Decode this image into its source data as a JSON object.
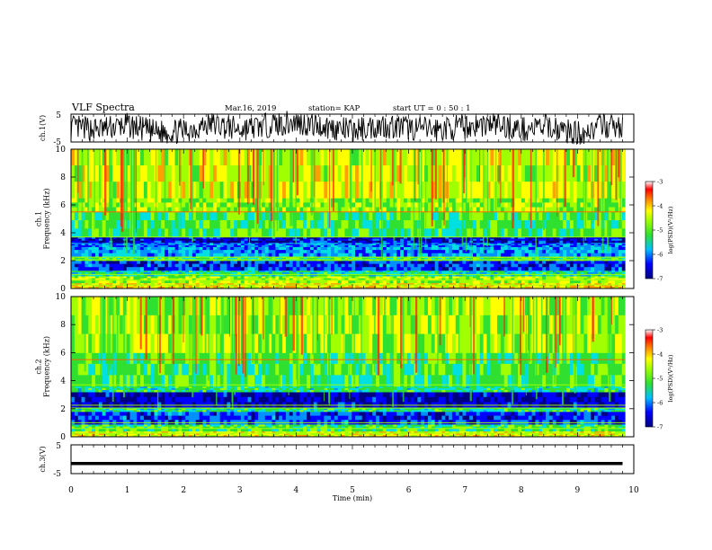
{
  "header": {
    "title": "VLF Spectra",
    "date": "Mar.16, 2019",
    "station": "station= KAP",
    "start": "start  UT =   0 : 50 : 1"
  },
  "colors": {
    "palette": [
      "#000080",
      "#0000ff",
      "#0090ff",
      "#00e0e0",
      "#30e030",
      "#a0ff00",
      "#ffff00",
      "#ffa000",
      "#ff2000",
      "#ff80ff"
    ],
    "trace": "#000000",
    "axes": "#000000"
  },
  "chart_data": [
    {
      "type": "line",
      "name": "ch1-waveform",
      "ylabel": "ch.1(V)",
      "ylim": [
        -5,
        5
      ],
      "yticks": [
        "5",
        "-5"
      ],
      "x": [
        0,
        0.5,
        1,
        1.5,
        2,
        2.5,
        3,
        3.5,
        4,
        4.5,
        5,
        5.5,
        6,
        6.5,
        7,
        7.5,
        8,
        8.5,
        9,
        9.5,
        9.8
      ],
      "y": [
        0.2,
        -0.5,
        1.0,
        -1.5,
        -1.0,
        1.5,
        -0.5,
        1.0,
        2.0,
        0.5,
        -1.0,
        1.0,
        0.0,
        -0.5,
        0.5,
        1.5,
        -0.5,
        0.5,
        -2.0,
        1.0,
        0.0
      ]
    },
    {
      "type": "heatmap",
      "name": "ch1-spectrogram",
      "ylabel": "ch.1\nFrequency (kHz)",
      "ylim": [
        0,
        10
      ],
      "yticks": [
        "0",
        "2",
        "4",
        "6",
        "8",
        "10"
      ],
      "colorbar": {
        "label": "log(PSD)(V²/Hz)",
        "range": [
          -7,
          -3
        ],
        "ticks": [
          "-3",
          "-4",
          "-5",
          "-6",
          "-7"
        ]
      },
      "bands": [
        {
          "f": [
            0,
            0.4
          ],
          "level": -4.0
        },
        {
          "f": [
            0.4,
            0.9
          ],
          "level": -4.5
        },
        {
          "f": [
            0.9,
            1.3
          ],
          "level": -5.3
        },
        {
          "f": [
            1.3,
            2.0
          ],
          "level": -6.2
        },
        {
          "f": [
            2.0,
            2.3
          ],
          "level": -5.0
        },
        {
          "f": [
            2.3,
            3.0
          ],
          "level": -5.8
        },
        {
          "f": [
            3.0,
            3.3
          ],
          "level": -6.0
        },
        {
          "f": [
            3.3,
            3.7
          ],
          "level": -6.5
        },
        {
          "f": [
            3.7,
            5.5
          ],
          "level": -5.0
        },
        {
          "f": [
            5.5,
            6.5
          ],
          "level": -4.6
        },
        {
          "f": [
            6.5,
            10
          ],
          "level": -4.3
        }
      ]
    },
    {
      "type": "heatmap",
      "name": "ch2-spectrogram",
      "ylabel": "ch.2\nFrequency (kHz)",
      "ylim": [
        0,
        10
      ],
      "yticks": [
        "0",
        "2",
        "4",
        "6",
        "8",
        "10"
      ],
      "colorbar": {
        "label": "log(PSD)(V²/Hz)",
        "range": [
          -7,
          -3
        ],
        "ticks": [
          "-3",
          "-4",
          "-5",
          "-6",
          "-7"
        ]
      },
      "bands": [
        {
          "f": [
            0,
            0.4
          ],
          "level": -4.2
        },
        {
          "f": [
            0.4,
            0.9
          ],
          "level": -5.0
        },
        {
          "f": [
            0.9,
            1.8
          ],
          "level": -6.2
        },
        {
          "f": [
            1.8,
            2.1
          ],
          "level": -5.2
        },
        {
          "f": [
            2.1,
            3.2
          ],
          "level": -6.6
        },
        {
          "f": [
            3.2,
            3.6
          ],
          "level": -5.2
        },
        {
          "f": [
            3.6,
            6.0
          ],
          "level": -5.0
        },
        {
          "f": [
            6.0,
            10
          ],
          "level": -4.5
        }
      ]
    },
    {
      "type": "line",
      "name": "ch3-waveform",
      "ylabel": "ch.3(V)",
      "ylim": [
        -5,
        5
      ],
      "yticks": [
        "5",
        "-5"
      ],
      "x": [
        0,
        9.8
      ],
      "y": [
        -1.5,
        -1.5
      ]
    }
  ],
  "xaxis": {
    "label": "Time  (min)",
    "ticks": [
      "0",
      "1",
      "2",
      "3",
      "4",
      "5",
      "6",
      "7",
      "8",
      "9",
      "10"
    ],
    "xlim": [
      0,
      10
    ]
  }
}
